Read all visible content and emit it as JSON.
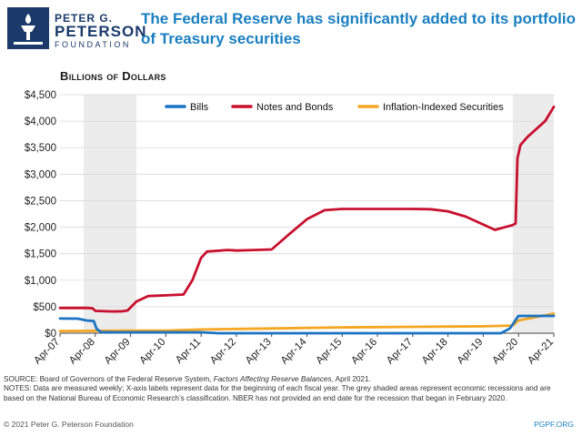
{
  "header": {
    "logo_line1": "PETER G.",
    "logo_line2": "PETERSON",
    "logo_line3": "FOUNDATION",
    "title": "The Federal Reserve has significantly added to its portfolio of Treasury securities"
  },
  "colors": {
    "title": "#1a7fc1",
    "logo": "#1b3a6b",
    "bills": "#1a73c4",
    "notes_and_bonds": "#c8102e",
    "inflation_indexed": "#f5a623",
    "recession_shade": "#ececec"
  },
  "chart_data": {
    "type": "line",
    "unit_label": "Billions of Dollars",
    "x_range": [
      "2007-04-01",
      "2021-04-01"
    ],
    "x_ticks": [
      "Apr-07",
      "Apr-08",
      "Apr-09",
      "Apr-10",
      "Apr-11",
      "Apr-12",
      "Apr-13",
      "Apr-14",
      "Apr-15",
      "Apr-16",
      "Apr-17",
      "Apr-18",
      "Apr-19",
      "Apr-20",
      "Apr-21"
    ],
    "ylim": [
      0,
      4500
    ],
    "y_ticks": [
      "$0",
      "$500",
      "$1,000",
      "$1,500",
      "$2,000",
      "$2,500",
      "$3,000",
      "$3,500",
      "$4,000",
      "$4,500"
    ],
    "grid": true,
    "legend_position": "top",
    "recessions": [
      {
        "start": "2007-12-01",
        "end": "2009-06-01"
      },
      {
        "start": "2020-02-01",
        "end": "2021-04-01"
      }
    ],
    "series": [
      {
        "name": "Bills",
        "color": "#1a73c4",
        "points": [
          [
            "2007-04-01",
            277
          ],
          [
            "2007-10-01",
            275
          ],
          [
            "2008-01-01",
            240
          ],
          [
            "2008-03-15",
            230
          ],
          [
            "2008-04-15",
            80
          ],
          [
            "2008-06-01",
            20
          ],
          [
            "2008-10-01",
            18
          ],
          [
            "2009-06-01",
            18
          ],
          [
            "2010-04-01",
            18
          ],
          [
            "2011-04-01",
            18
          ],
          [
            "2011-10-01",
            0
          ],
          [
            "2019-10-01",
            0
          ],
          [
            "2020-01-01",
            90
          ],
          [
            "2020-02-01",
            169
          ],
          [
            "2020-03-01",
            250
          ],
          [
            "2020-04-01",
            326
          ],
          [
            "2021-04-01",
            326
          ]
        ]
      },
      {
        "name": "Notes and Bonds",
        "color": "#c8102e",
        "points": [
          [
            "2007-04-01",
            475
          ],
          [
            "2008-01-01",
            478
          ],
          [
            "2008-03-01",
            470
          ],
          [
            "2008-04-01",
            420
          ],
          [
            "2008-10-01",
            410
          ],
          [
            "2009-01-01",
            412
          ],
          [
            "2009-03-01",
            430
          ],
          [
            "2009-06-01",
            600
          ],
          [
            "2009-10-01",
            700
          ],
          [
            "2010-04-01",
            715
          ],
          [
            "2010-10-01",
            730
          ],
          [
            "2011-01-01",
            1000
          ],
          [
            "2011-04-01",
            1420
          ],
          [
            "2011-06-01",
            1540
          ],
          [
            "2012-01-01",
            1570
          ],
          [
            "2012-04-01",
            1560
          ],
          [
            "2012-10-01",
            1570
          ],
          [
            "2013-04-01",
            1580
          ],
          [
            "2013-10-01",
            1870
          ],
          [
            "2014-04-01",
            2150
          ],
          [
            "2014-10-01",
            2320
          ],
          [
            "2015-04-01",
            2345
          ],
          [
            "2016-04-01",
            2345
          ],
          [
            "2017-04-01",
            2345
          ],
          [
            "2017-10-01",
            2340
          ],
          [
            "2018-04-01",
            2300
          ],
          [
            "2018-10-01",
            2200
          ],
          [
            "2019-04-01",
            2050
          ],
          [
            "2019-08-01",
            1950
          ],
          [
            "2020-02-01",
            2040
          ],
          [
            "2020-03-01",
            2070
          ],
          [
            "2020-03-20",
            3300
          ],
          [
            "2020-04-20",
            3550
          ],
          [
            "2020-07-01",
            3700
          ],
          [
            "2021-01-01",
            4000
          ],
          [
            "2021-04-01",
            4270
          ]
        ]
      },
      {
        "name": "Inflation-Indexed Securities",
        "color": "#f5a623",
        "points": [
          [
            "2007-04-01",
            40
          ],
          [
            "2008-04-01",
            45
          ],
          [
            "2009-04-01",
            50
          ],
          [
            "2010-04-01",
            50
          ],
          [
            "2011-04-01",
            70
          ],
          [
            "2012-04-01",
            80
          ],
          [
            "2013-04-01",
            90
          ],
          [
            "2014-04-01",
            100
          ],
          [
            "2015-04-01",
            110
          ],
          [
            "2016-04-01",
            115
          ],
          [
            "2017-04-01",
            120
          ],
          [
            "2018-04-01",
            125
          ],
          [
            "2019-04-01",
            130
          ],
          [
            "2020-02-01",
            145
          ],
          [
            "2020-04-01",
            240
          ],
          [
            "2021-04-01",
            370
          ]
        ]
      }
    ]
  },
  "notes": {
    "source_prefix": "SOURCE: Board of Governors of the Federal Reserve System, ",
    "source_italic": "Factors Affecting Reserve Balances",
    "source_suffix": ", April 2021.",
    "notes_text": "NOTES: Data are measured weekly; X-axis labels represent data for the beginning of each fiscal year. The grey shaded areas represent economic recessions and are based on the National Bureau of Economic Research’s classification. NBER has not provided an end date for the recession that began in February 2020."
  },
  "footer": {
    "copyright": "© 2021 Peter G. Peterson Foundation",
    "site": "PGPF.ORG"
  }
}
